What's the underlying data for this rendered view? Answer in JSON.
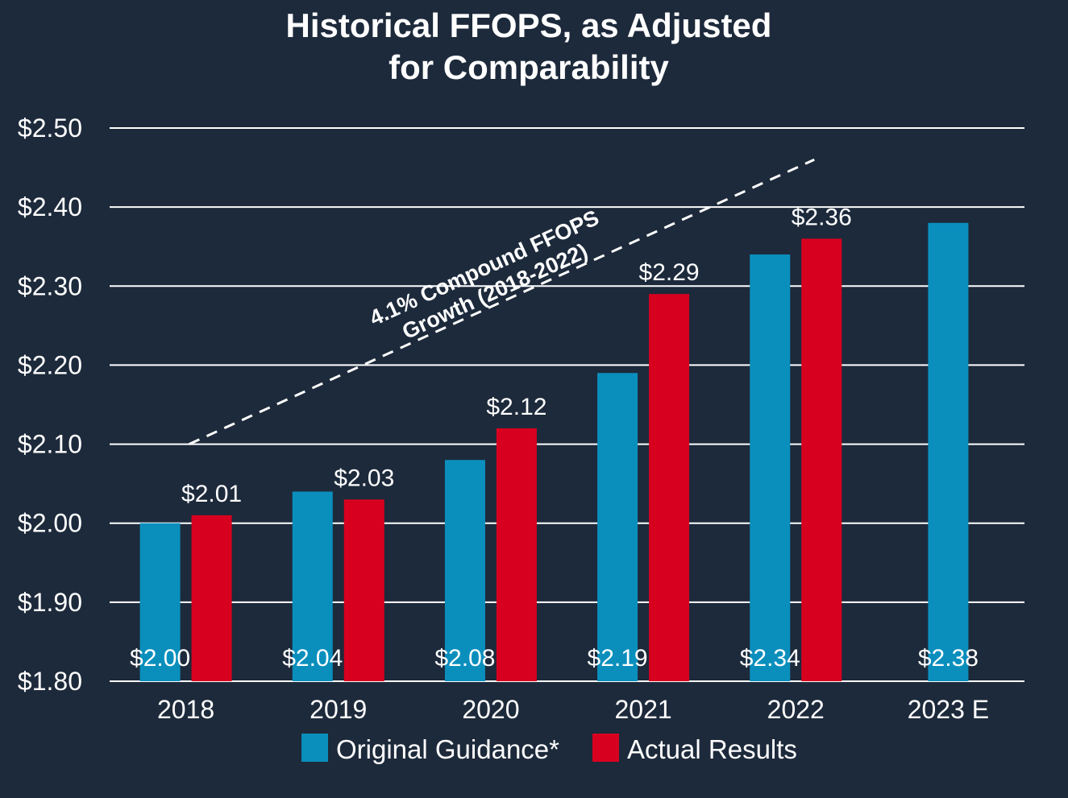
{
  "chart_data": {
    "type": "bar",
    "title_lines": [
      "Historical FFOPS, as Adjusted",
      "for Comparability"
    ],
    "categories": [
      "2018",
      "2019",
      "2020",
      "2021",
      "2022",
      "2023 E"
    ],
    "series": [
      {
        "name": "Original Guidance*",
        "color": "#0a8fbd",
        "values": [
          2.0,
          2.04,
          2.08,
          2.19,
          2.34,
          2.38
        ],
        "labels": [
          "$2.00",
          "$2.04",
          "$2.08",
          "$2.19",
          "$2.34",
          "$2.38"
        ]
      },
      {
        "name": "Actual Results",
        "color": "#d8001f",
        "values": [
          2.01,
          2.03,
          2.12,
          2.29,
          2.36,
          null
        ],
        "labels": [
          "$2.01",
          "$2.03",
          "$2.12",
          "$2.29",
          "$2.36",
          ""
        ]
      }
    ],
    "ylim": [
      1.8,
      2.5
    ],
    "yticks": [
      1.8,
      1.9,
      2.0,
      2.1,
      2.2,
      2.3,
      2.4,
      2.5
    ],
    "ytick_labels": [
      "$1.80",
      "$1.90",
      "$2.00",
      "$2.10",
      "$2.20",
      "$2.30",
      "$2.40",
      "$2.50"
    ],
    "grid": true,
    "legend": "bottom",
    "trend_annotation": {
      "lines": [
        "4.1% Compound FFOPS",
        "Growth (2018-2022)"
      ],
      "start_value": 2.1,
      "end_value": 2.46,
      "start_category": "2018",
      "end_category": "2022",
      "style": "dashed"
    }
  }
}
